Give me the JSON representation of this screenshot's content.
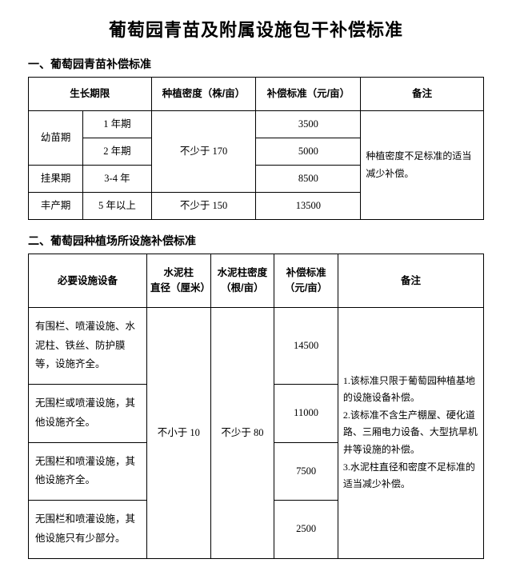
{
  "title": "葡萄园青苗及附属设施包干补偿标准",
  "section1": {
    "heading": "一、葡萄园青苗补偿标准",
    "headers": {
      "period": "生长期限",
      "density": "种植密度（株/亩）",
      "standard": "补偿标准（元/亩）",
      "remark": "备注"
    },
    "stage_seedling": "幼苗期",
    "stage_fruit": "挂果期",
    "stage_full": "丰产期",
    "rows": [
      {
        "years": "1 年期",
        "std": "3500"
      },
      {
        "years": "2 年期",
        "std": "5000"
      },
      {
        "years": "3-4 年",
        "std": "8500"
      },
      {
        "years": "5 年以上",
        "std": "13500"
      }
    ],
    "density1": "不少于 170",
    "density2": "不少于 150",
    "remark_text": "种植密度不足标准的适当减少补偿。"
  },
  "section2": {
    "heading": "二、葡萄园种植场所设施补偿标准",
    "headers": {
      "equip": "必要设施设备",
      "diameter": "水泥柱\n直径（厘米）",
      "pdensity": "水泥柱密度\n（根/亩）",
      "standard": "补偿标准\n（元/亩）",
      "remark": "备注"
    },
    "diameter_val": "不小于 10",
    "pdensity_val": "不少于 80",
    "rows": [
      {
        "equip": "有围栏、喷灌设施、水泥柱、铁丝、防护膜等，设施齐全。",
        "std": "14500"
      },
      {
        "equip": "无围栏或喷灌设施，其他设施齐全。",
        "std": "11000"
      },
      {
        "equip": "无围栏和喷灌设施，其他设施齐全。",
        "std": "7500"
      },
      {
        "equip": "无围栏和喷灌设施，其他设施只有少部分。",
        "std": "2500"
      }
    ],
    "remark_text": "1.该标准只限于葡萄园种植基地的设施设备补偿。\n2.该标准不含生产棚屋、硬化道路、三厢电力设备、大型抗旱机井等设施的补偿。\n3.水泥柱直径和密度不足标准的适当减少补偿。"
  }
}
